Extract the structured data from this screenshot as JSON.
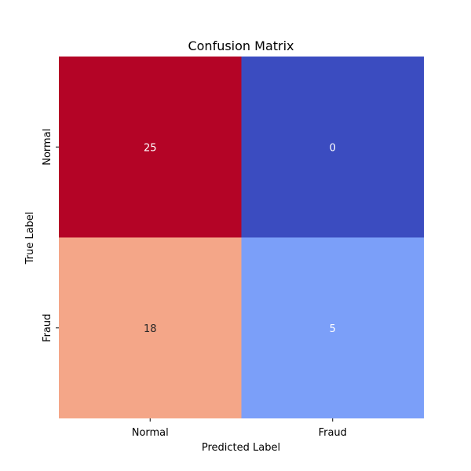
{
  "chart_data": {
    "type": "heatmap",
    "title": "Confusion Matrix",
    "xlabel": "Predicted Label",
    "ylabel": "True Label",
    "x_categories": [
      "Normal",
      "Fraud"
    ],
    "y_categories": [
      "Normal",
      "Fraud"
    ],
    "values": [
      [
        25,
        0
      ],
      [
        18,
        5
      ]
    ],
    "cell_colors": [
      [
        "#b40426",
        "#3b4cc0"
      ],
      [
        "#f4a688",
        "#7b9ff9"
      ]
    ],
    "annotation_colors": [
      [
        "#ffffff",
        "#ffffff"
      ],
      [
        "#262626",
        "#ffffff"
      ]
    ],
    "colormap": "coolwarm",
    "colorbar": false,
    "grid": false
  }
}
